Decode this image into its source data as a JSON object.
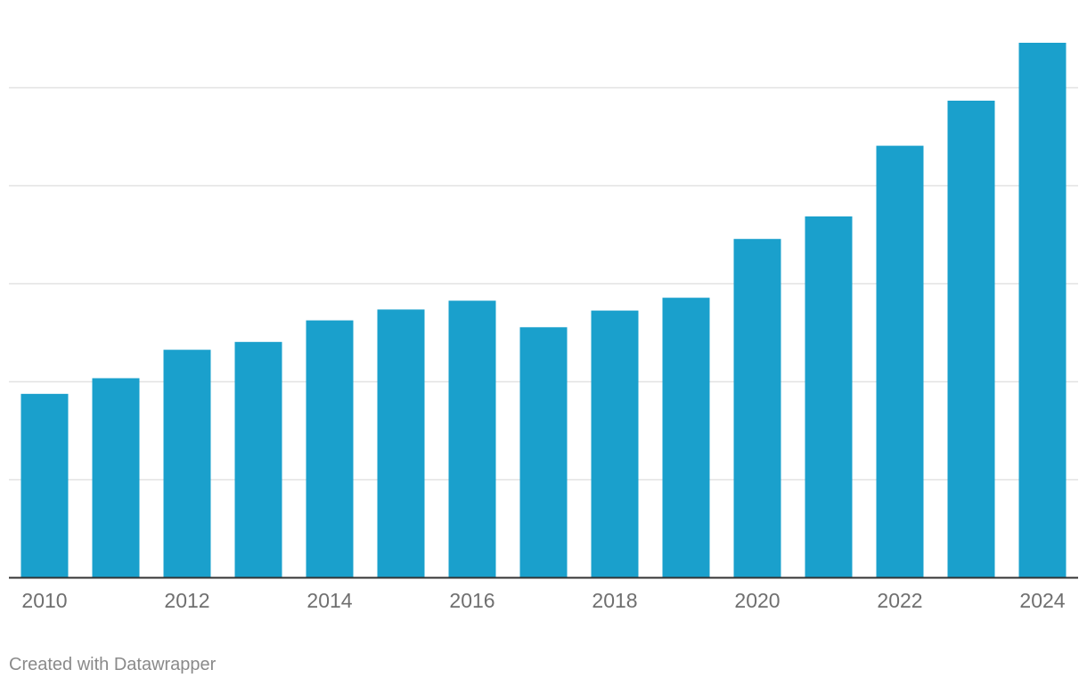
{
  "chart_data": {
    "type": "bar",
    "title": "",
    "xlabel": "",
    "ylabel": "",
    "categories": [
      "2010",
      "2011",
      "2012",
      "2013",
      "2014",
      "2015",
      "2016",
      "2017",
      "2018",
      "2019",
      "2020",
      "2021",
      "2022",
      "2023",
      "2024"
    ],
    "values": [
      187,
      203,
      232,
      240,
      262,
      273,
      282,
      255,
      272,
      285,
      345,
      368,
      440,
      486,
      545
    ],
    "ylim": [
      0,
      545
    ],
    "y_gridlines": [
      100,
      200,
      300,
      400,
      500
    ],
    "y_tick_labels_shown": false,
    "x_tick_labels": [
      "2010",
      "2012",
      "2014",
      "2016",
      "2018",
      "2020",
      "2022",
      "2024"
    ],
    "grid": "horizontal",
    "legend": "none",
    "bar_color": "#1aa0cc",
    "gridline_color": "#e2e2e2",
    "baseline_color": "#333333"
  },
  "footer": {
    "credit": "Created with Datawrapper"
  }
}
